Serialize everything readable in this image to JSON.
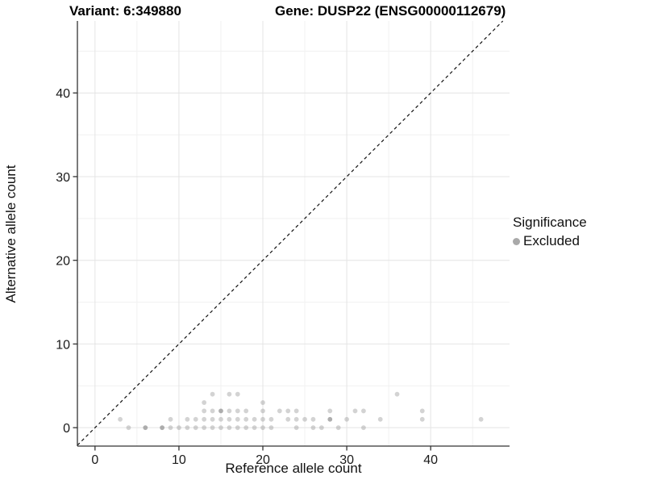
{
  "header": {
    "variant_title": "Variant: 6:349880",
    "gene_title": "Gene: DUSP22 (ENSG00000112679)"
  },
  "legend": {
    "title": "Significance",
    "items": [
      {
        "label": "Excluded",
        "color": "#a9a9a9"
      }
    ]
  },
  "chart_data": {
    "type": "scatter",
    "title": "Variant: 6:349880  |  Gene: DUSP22 (ENSG00000112679)",
    "xlabel": "Reference allele count",
    "ylabel": "Alternative allele count",
    "xlim": [
      -2.1,
      49.4
    ],
    "ylim": [
      -2.2,
      48.6
    ],
    "x_ticks": [
      0,
      10,
      20,
      30,
      40
    ],
    "y_ticks": [
      0,
      10,
      20,
      30,
      40
    ],
    "x_minor_ticks": [
      5,
      15,
      25,
      35,
      45
    ],
    "y_minor_ticks": [
      5,
      15,
      25,
      35,
      45
    ],
    "grid": true,
    "legend_position": "right",
    "reference_line": {
      "equation": "y = x",
      "style": "dashed",
      "color": "#111111"
    },
    "series": [
      {
        "name": "Excluded",
        "color": "#979797",
        "opacity": 0.42,
        "marker_radius": 2.9,
        "points": [
          [
            4,
            0
          ],
          [
            6,
            0
          ],
          [
            8,
            0
          ],
          [
            9,
            0
          ],
          [
            10,
            0
          ],
          [
            11,
            0
          ],
          [
            12,
            0
          ],
          [
            13,
            0
          ],
          [
            14,
            0
          ],
          [
            15,
            0
          ],
          [
            16,
            0
          ],
          [
            17,
            0
          ],
          [
            18,
            0
          ],
          [
            19,
            0
          ],
          [
            20,
            0
          ],
          [
            21,
            0
          ],
          [
            24,
            0
          ],
          [
            26,
            0
          ],
          [
            27,
            0
          ],
          [
            29,
            0
          ],
          [
            32,
            0
          ],
          [
            3,
            1
          ],
          [
            9,
            1
          ],
          [
            11,
            1
          ],
          [
            12,
            1
          ],
          [
            13,
            1
          ],
          [
            14,
            1
          ],
          [
            15,
            1
          ],
          [
            16,
            1
          ],
          [
            17,
            1
          ],
          [
            18,
            1
          ],
          [
            19,
            1
          ],
          [
            20,
            1
          ],
          [
            21,
            1
          ],
          [
            23,
            1
          ],
          [
            24,
            1
          ],
          [
            25,
            1
          ],
          [
            26,
            1
          ],
          [
            28,
            1
          ],
          [
            30,
            1
          ],
          [
            34,
            1
          ],
          [
            39,
            1
          ],
          [
            46,
            1
          ],
          [
            13,
            2
          ],
          [
            14,
            2
          ],
          [
            15,
            2
          ],
          [
            16,
            2
          ],
          [
            17,
            2
          ],
          [
            18,
            2
          ],
          [
            20,
            2
          ],
          [
            22,
            2
          ],
          [
            23,
            2
          ],
          [
            24,
            2
          ],
          [
            28,
            2
          ],
          [
            31,
            2
          ],
          [
            32,
            2
          ],
          [
            39,
            2
          ],
          [
            13,
            3
          ],
          [
            20,
            3
          ],
          [
            14,
            4
          ],
          [
            16,
            4
          ],
          [
            17,
            4
          ],
          [
            36,
            4
          ]
        ],
        "overplotted_points": [
          [
            6,
            0
          ],
          [
            8,
            0
          ],
          [
            15,
            2
          ],
          [
            28,
            1
          ]
        ]
      }
    ]
  },
  "style": {
    "grid_major_color": "#e4e4e4",
    "grid_minor_color": "#f1f1f1",
    "axis_line_color": "#333333",
    "tick_label_color": "#1a1a1a",
    "tick_label_size": 16,
    "dark_point_opacity": 0.78
  }
}
